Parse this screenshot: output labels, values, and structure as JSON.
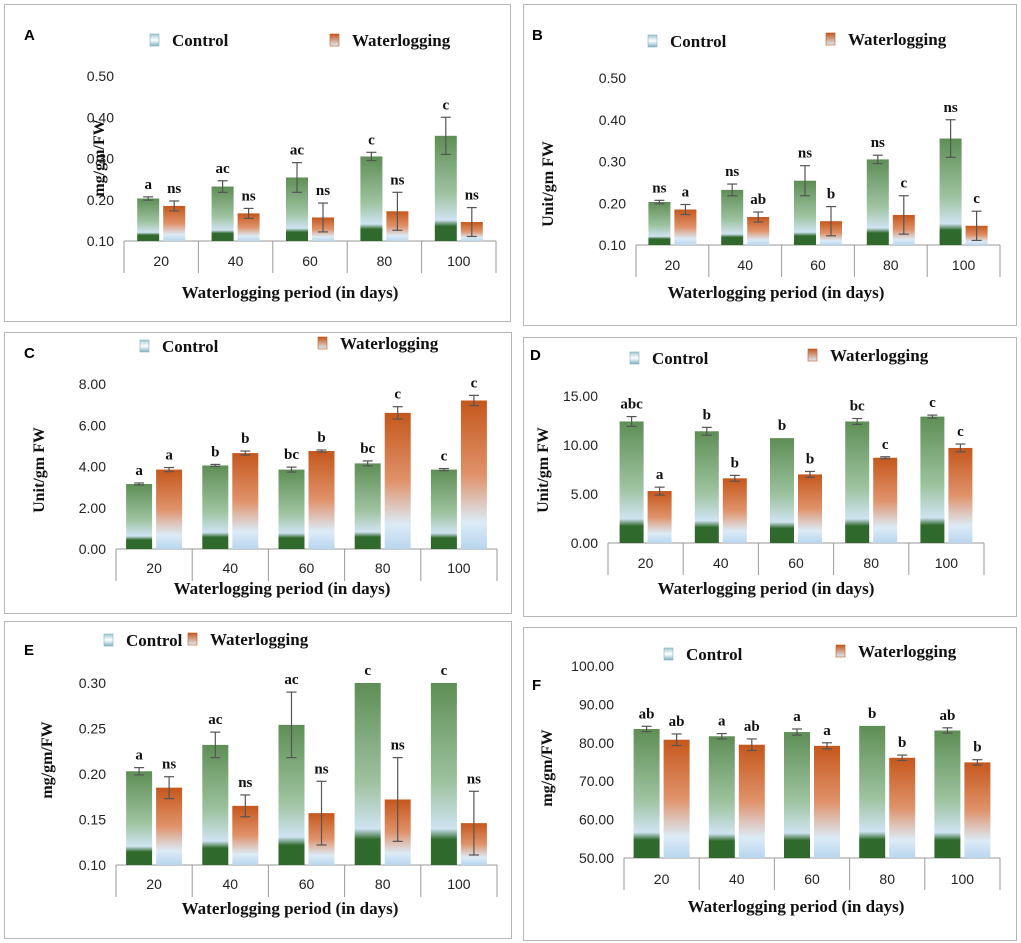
{
  "colors": {
    "control_top": "#5e8e55",
    "control_mid": "#9ec3a0",
    "control_low": "#cfe3f2",
    "control_base": "#2f6a2c",
    "water_top": "#c5571c",
    "water_mid": "#e0926a",
    "water_low": "#dcebf7",
    "water_base": "#b8d6ee",
    "error": "#555555",
    "border": "#b7b7b7",
    "axis": "#9a9a9a"
  },
  "chart_data": [
    {
      "panel": "A",
      "type": "bar",
      "categories": [
        "20",
        "40",
        "60",
        "80",
        "100"
      ],
      "legend": [
        "Control",
        "Waterlogging"
      ],
      "ylabel": "mg/gm/FW",
      "xlabel": "Waterlogging period (in days)",
      "ylim": [
        0.1,
        0.5
      ],
      "yticks": [
        "0.10",
        "0.20",
        "0.30",
        "0.40",
        "0.50"
      ],
      "gridlines": false,
      "series": [
        {
          "name": "Control",
          "values": [
            0.203,
            0.232,
            0.254,
            0.305,
            0.355
          ],
          "errors": [
            0.004,
            0.014,
            0.036,
            0.01,
            0.045
          ],
          "labels": [
            "a",
            "ac",
            "ac",
            "c",
            "c"
          ]
        },
        {
          "name": "Waterlogging",
          "values": [
            0.185,
            0.167,
            0.157,
            0.172,
            0.146
          ],
          "errors": [
            0.012,
            0.012,
            0.035,
            0.046,
            0.035
          ],
          "labels": [
            "ns",
            "ns",
            "ns",
            "ns",
            "ns"
          ]
        }
      ]
    },
    {
      "panel": "B",
      "type": "bar",
      "categories": [
        "20",
        "40",
        "60",
        "80",
        "100"
      ],
      "legend": [
        "Control",
        "Waterlogging"
      ],
      "ylabel": "Unit/gm FW",
      "xlabel": "Waterlogging period (in days)",
      "ylim": [
        0.1,
        0.5
      ],
      "yticks": [
        "0.10",
        "0.20",
        "0.30",
        "0.40",
        "0.50"
      ],
      "gridlines": false,
      "series": [
        {
          "name": "Control",
          "values": [
            0.203,
            0.232,
            0.254,
            0.305,
            0.355
          ],
          "errors": [
            0.004,
            0.014,
            0.036,
            0.01,
            0.045
          ],
          "labels": [
            "ns",
            "ns",
            "ns",
            "ns",
            "ns"
          ]
        },
        {
          "name": "Waterlogging",
          "values": [
            0.185,
            0.167,
            0.157,
            0.172,
            0.146
          ],
          "errors": [
            0.012,
            0.012,
            0.035,
            0.046,
            0.035
          ],
          "labels": [
            "a",
            "ab",
            "b",
            "c",
            "c"
          ]
        }
      ]
    },
    {
      "panel": "C",
      "type": "bar",
      "categories": [
        "20",
        "40",
        "60",
        "80",
        "100"
      ],
      "legend": [
        "Control",
        "Waterlogging"
      ],
      "ylabel": "Unit/gm FW",
      "xlabel": "Waterlogging period (in days)",
      "ylim": [
        0,
        8
      ],
      "yticks": [
        "0.00",
        "2.00",
        "4.00",
        "6.00",
        "8.00"
      ],
      "gridlines": false,
      "series": [
        {
          "name": "Control",
          "values": [
            3.15,
            4.05,
            3.85,
            4.15,
            3.85
          ],
          "errors": [
            0.05,
            0.05,
            0.12,
            0.12,
            0.05
          ],
          "labels": [
            "a",
            "b",
            "bc",
            "bc",
            "c"
          ]
        },
        {
          "name": "Waterlogging",
          "values": [
            3.85,
            4.65,
            4.75,
            6.6,
            7.2
          ],
          "errors": [
            0.1,
            0.1,
            0.05,
            0.3,
            0.25
          ],
          "labels": [
            "a",
            "b",
            "b",
            "c",
            "c"
          ]
        }
      ]
    },
    {
      "panel": "D",
      "type": "bar",
      "categories": [
        "20",
        "40",
        "60",
        "80",
        "100"
      ],
      "legend": [
        "Control",
        "Waterlogging"
      ],
      "ylabel": "Unit/gm FW",
      "xlabel": "Waterlogging period (in days)",
      "ylim": [
        0,
        15
      ],
      "yticks": [
        "0.00",
        "5.00",
        "10.00",
        "15.00"
      ],
      "gridlines": false,
      "series": [
        {
          "name": "Control",
          "values": [
            12.4,
            11.4,
            10.7,
            12.4,
            12.9
          ],
          "errors": [
            0.5,
            0.4,
            0,
            0.3,
            0.15
          ],
          "labels": [
            "abc",
            "b",
            "b",
            "bc",
            "c"
          ]
        },
        {
          "name": "Waterlogging",
          "values": [
            5.3,
            6.6,
            7.0,
            8.7,
            9.7
          ],
          "errors": [
            0.4,
            0.3,
            0.3,
            0.1,
            0.4
          ],
          "labels": [
            "a",
            "b",
            "b",
            "c",
            "c"
          ]
        }
      ]
    },
    {
      "panel": "E",
      "type": "bar",
      "categories": [
        "20",
        "40",
        "60",
        "80",
        "100"
      ],
      "legend": [
        "Control",
        "Waterlogging"
      ],
      "ylabel": "mg/gm/FW",
      "xlabel": "Waterlogging period (in days)",
      "ylim": [
        0.1,
        0.3
      ],
      "yticks": [
        "0.10",
        "0.15",
        "0.20",
        "0.25",
        "0.30"
      ],
      "gridlines": false,
      "series": [
        {
          "name": "Control",
          "values": [
            0.203,
            0.232,
            0.254,
            0.3,
            0.3
          ],
          "errors": [
            0.004,
            0.014,
            0.036,
            0,
            0
          ],
          "labels": [
            "a",
            "ac",
            "ac",
            "c",
            "c"
          ]
        },
        {
          "name": "Waterlogging",
          "values": [
            0.185,
            0.165,
            0.157,
            0.172,
            0.146
          ],
          "errors": [
            0.012,
            0.012,
            0.035,
            0.046,
            0.035
          ],
          "labels": [
            "ns",
            "ns",
            "ns",
            "ns",
            "ns"
          ]
        }
      ]
    },
    {
      "panel": "F",
      "type": "bar",
      "categories": [
        "20",
        "40",
        "60",
        "80",
        "100"
      ],
      "legend": [
        "Control",
        "Waterlogging"
      ],
      "ylabel": "mg/gm/FW",
      "xlabel": "Waterlogging period (in days)",
      "ylim": [
        50,
        100
      ],
      "yticks": [
        "50.00",
        "60.00",
        "70.00",
        "80.00",
        "90.00",
        "100.00"
      ],
      "gridlines": false,
      "series": [
        {
          "name": "Control",
          "values": [
            83.6,
            81.7,
            82.8,
            84.4,
            83.2
          ],
          "errors": [
            0.7,
            0.7,
            0.8,
            0,
            0.7
          ],
          "labels": [
            "ab",
            "a",
            "a",
            "b",
            "ab"
          ]
        },
        {
          "name": "Waterlogging",
          "values": [
            80.8,
            79.5,
            79.2,
            76.1,
            74.9
          ],
          "errors": [
            1.5,
            1.5,
            0.8,
            0.7,
            0.7
          ],
          "labels": [
            "ab",
            "ab",
            "a",
            "b",
            "b"
          ]
        }
      ]
    }
  ]
}
